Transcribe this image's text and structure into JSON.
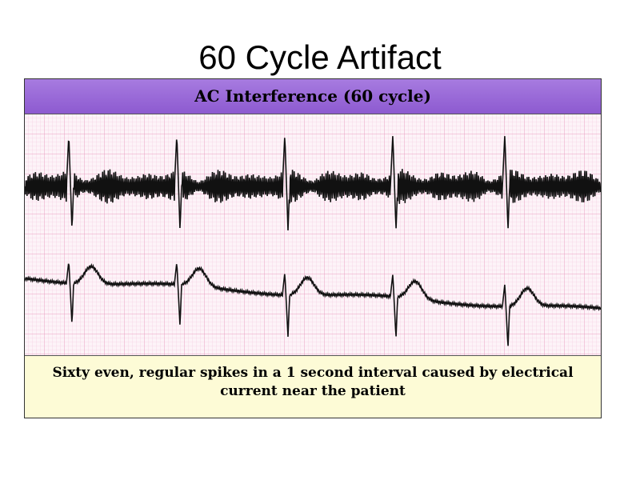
{
  "title": "60 Cycle Artifact",
  "panel": {
    "header": "AC Interference (60 cycle)",
    "caption": "Sixty even, regular spikes in a 1 second interval caused by electrical current near the patient"
  }
}
